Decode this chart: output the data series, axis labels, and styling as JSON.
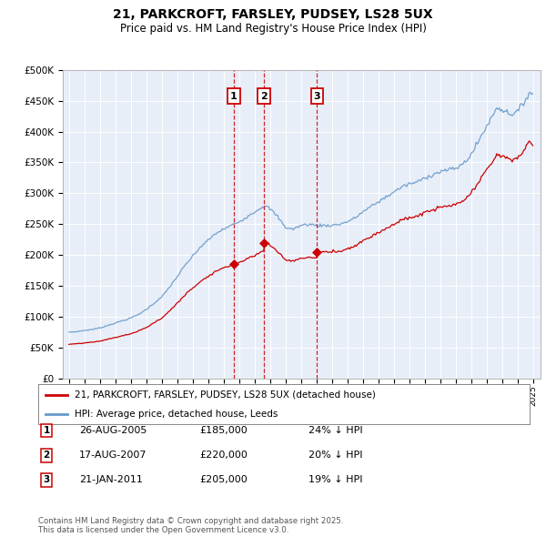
{
  "title": "21, PARKCROFT, FARSLEY, PUDSEY, LS28 5UX",
  "subtitle": "Price paid vs. HM Land Registry's House Price Index (HPI)",
  "legend_entry1": "21, PARKCROFT, FARSLEY, PUDSEY, LS28 5UX (detached house)",
  "legend_entry2": "HPI: Average price, detached house, Leeds",
  "sale_labels": [
    "1",
    "2",
    "3"
  ],
  "sale_dates_num": [
    2005.64,
    2007.63,
    2011.05
  ],
  "sale_prices": [
    185000,
    220000,
    205000
  ],
  "sale_info": [
    {
      "num": "1",
      "date": "26-AUG-2005",
      "price": "£185,000",
      "pct": "24% ↓ HPI"
    },
    {
      "num": "2",
      "date": "17-AUG-2007",
      "price": "£220,000",
      "pct": "20% ↓ HPI"
    },
    {
      "num": "3",
      "date": "21-JAN-2011",
      "price": "£205,000",
      "pct": "19% ↓ HPI"
    }
  ],
  "footer": "Contains HM Land Registry data © Crown copyright and database right 2025.\nThis data is licensed under the Open Government Licence v3.0.",
  "plot_bg": "#e8eef8",
  "hpi_color": "#6699cc",
  "price_color": "#cc0000",
  "vline_color": "#cc0000",
  "ylim": [
    0,
    500000
  ],
  "yticks": [
    0,
    50000,
    100000,
    150000,
    200000,
    250000,
    300000,
    350000,
    400000,
    450000,
    500000
  ],
  "xlim_start": 1994.6,
  "xlim_end": 2025.5
}
